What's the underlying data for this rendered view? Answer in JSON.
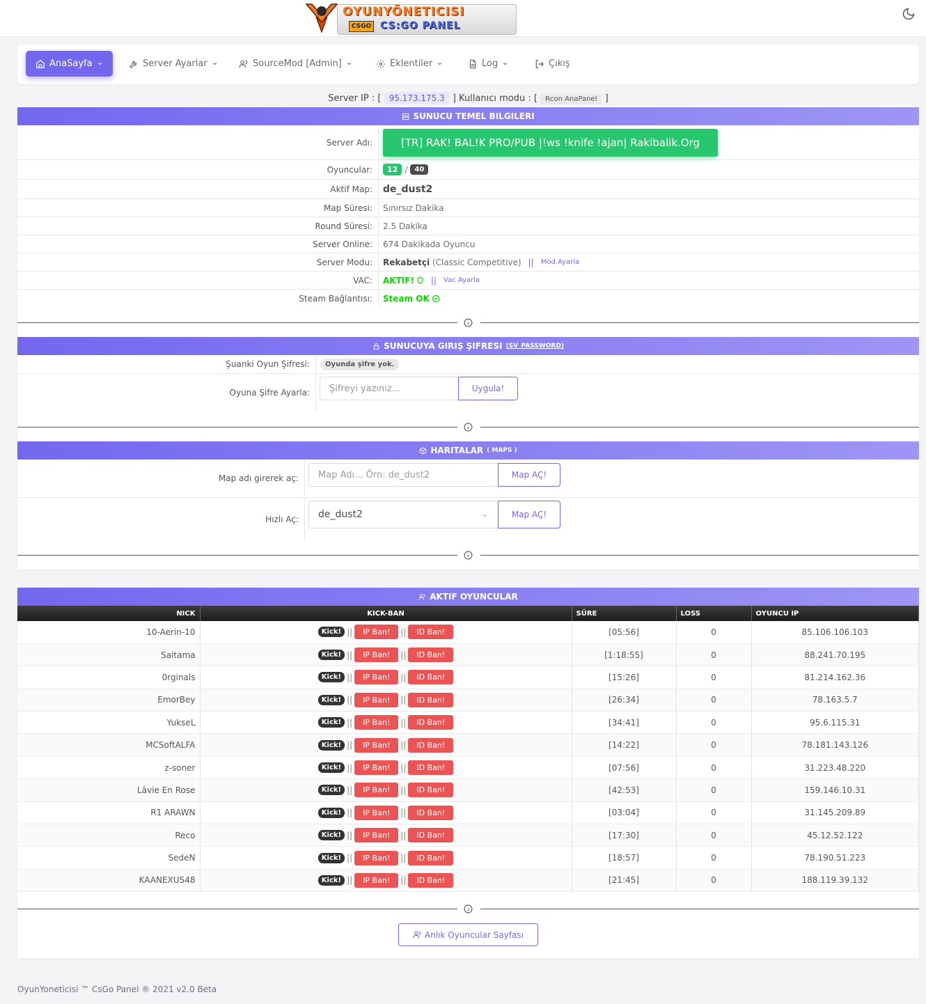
{
  "brand": {
    "title": "OYUNYÖNETICISI",
    "csgo_badge": "CSGO",
    "subtitle": "CS:GO PANEL"
  },
  "colors": {
    "accent": "#7367f0",
    "success": "#28c76f",
    "danger": "#ea5455",
    "dark": "#333333"
  },
  "nav": {
    "items": [
      {
        "label": "AnaSayfa",
        "icon": "home-icon",
        "active": true
      },
      {
        "label": "Server Ayarlar",
        "icon": "tool-icon"
      },
      {
        "label": "SourceMod [Admin]",
        "icon": "users-icon"
      },
      {
        "label": "Eklentiler",
        "icon": "settings-icon"
      },
      {
        "label": "Log",
        "icon": "file-icon"
      },
      {
        "label": "Çıkış",
        "icon": "logout-icon"
      }
    ]
  },
  "server_line": {
    "ip_label": "Server IP : [",
    "ip": "95.173.175.3",
    "mode_label": "] Kullanıcı modu : [",
    "mode": "Rcon AnaPanel",
    "close": "]"
  },
  "basic": {
    "title": "SUNUCU TEMEL BILGILERI",
    "server_name_label": "Server Adı:",
    "server_name": "[TR] RAK! BAL!K PRO/PUB |!ws !knife !ajan| Rakibalik.Org",
    "players_label": "Oyuncular:",
    "players_current": "12",
    "players_slash": "/",
    "players_max": "40",
    "map_label": "Aktif Map:",
    "map": "de_dust2",
    "map_time_label": "Map Süresi:",
    "map_time": "Sınırsız Dakika",
    "round_time_label": "Round Süresi:",
    "round_time": "2.5 Dakika",
    "online_label": "Server Online:",
    "online": "674 Dakikada Oyuncu",
    "mode_label": "Server Modu:",
    "mode": "Rekabetçi",
    "mode_detail": "(Classic Competitive)",
    "sep": "||",
    "mode_link": "Mod Ayarla",
    "vac_label": "VAC:",
    "vac": "AKTIF!",
    "vac_link": "Vac Ayarla",
    "steam_label": "Steam Bağlantısı:",
    "steam": "Steam OK"
  },
  "password": {
    "title": "SUNUCUYA GIRIŞ ŞIFRESI",
    "title_tag": "(SV_PASSWORD)",
    "current_label": "Şuanki Oyun Şifresi:",
    "current": "Oyunda şifre yok.",
    "set_label": "Oyuna Şifre Ayarla:",
    "placeholder": "Şifreyi yazınız...",
    "button": "Uygula!"
  },
  "maps": {
    "title": "HARITALAR",
    "title_tag": "( MAPS )",
    "open_label": "Map adı girerek aç:",
    "placeholder": "Map Adı... Örn: de_dust2",
    "open_button": "Map AÇ!",
    "quick_label": "Hızlı Aç:",
    "quick_selected": "de_dust2",
    "quick_button": "Map AÇ!"
  },
  "players": {
    "title": "AKTIF OYUNCULAR",
    "columns": [
      "NICK",
      "KICK-BAN",
      "SÜRE",
      "LOSS",
      "OYUNCU IP"
    ],
    "kick_label": "Kick!",
    "ipban_label": "IP Ban!",
    "idban_label": "ID Ban!",
    "pipes": "||",
    "rows": [
      {
        "nick": "10-Aerin-10",
        "time": "[05:56]",
        "loss": "0",
        "ip": "85.106.106.103"
      },
      {
        "nick": "Saitama",
        "time": "[1:18:55]",
        "loss": "0",
        "ip": "88.241.70.195"
      },
      {
        "nick": "0rginals",
        "time": "[15:26]",
        "loss": "0",
        "ip": "81.214.162.36"
      },
      {
        "nick": "EmorBey",
        "time": "[26:34]",
        "loss": "0",
        "ip": "78.163.5.7"
      },
      {
        "nick": "YukseL",
        "time": "[34:41]",
        "loss": "0",
        "ip": "95.6.115.31"
      },
      {
        "nick": "MCSoftALFA",
        "time": "[14:22]",
        "loss": "0",
        "ip": "78.181.143.126"
      },
      {
        "nick": "z-soner",
        "time": "[07:56]",
        "loss": "0",
        "ip": "31.223.48.220"
      },
      {
        "nick": "Lâvie En Rose",
        "time": "[42:53]",
        "loss": "0",
        "ip": "159.146.10.31"
      },
      {
        "nick": "R1 ARAWN",
        "time": "[03:04]",
        "loss": "0",
        "ip": "31.145.209.89"
      },
      {
        "nick": "Reco",
        "time": "[17:30]",
        "loss": "0",
        "ip": "45.12.52.122"
      },
      {
        "nick": "SedeN",
        "time": "[18:57]",
        "loss": "0",
        "ip": "78.190.51.223"
      },
      {
        "nick": "KAANEXUS48",
        "time": "[21:45]",
        "loss": "0",
        "ip": "188.119.39.132"
      }
    ],
    "page_button": "Anlık Oyuncular Sayfası"
  },
  "footer": "OyunYoneticisi ™ CsGo Panel ® 2021 v2.0 Beta"
}
